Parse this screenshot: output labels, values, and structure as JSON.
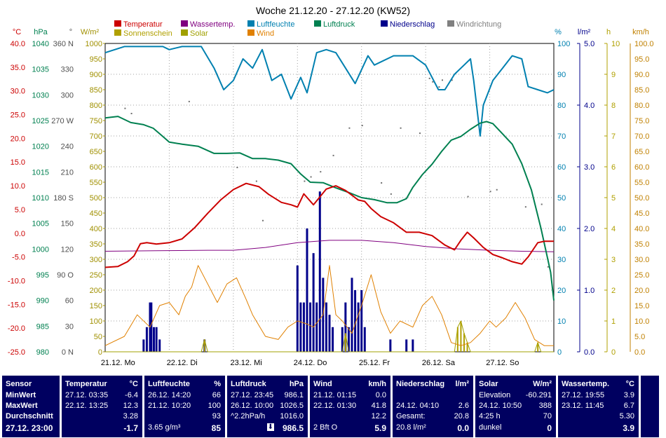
{
  "chart_data": {
    "type": "line",
    "title": "Woche 21.12.20 - 27.12.20 (KW52)",
    "legend": [
      {
        "label": "Temperatur",
        "color": "#cc0000"
      },
      {
        "label": "Wassertemp.",
        "color": "#800080"
      },
      {
        "label": "Luftfeuchte",
        "color": "#0080b0"
      },
      {
        "label": "Luftdruck",
        "color": "#008050"
      },
      {
        "label": "Niederschlag",
        "color": "#00008b"
      },
      {
        "label": "Windrichtung",
        "color": "#808080"
      },
      {
        "label": "Sonnenschein",
        "color": "#b0a000"
      },
      {
        "label": "Solar",
        "color": "#a0a000"
      },
      {
        "label": "Wind",
        "color": "#e08000"
      }
    ],
    "axes_left": [
      {
        "unit": "°C",
        "color": "#cc0000",
        "ticks": [
          "40.0",
          "35.0",
          "30.0",
          "25.0",
          "20.0",
          "15.0",
          "10.0",
          "5.0",
          "0.0",
          "-5.0",
          "-10.0",
          "-15.0",
          "-20.0",
          "-25.0"
        ]
      },
      {
        "unit": "hPa",
        "color": "#008050",
        "ticks": [
          "1040",
          "1035",
          "1030",
          "1025",
          "1020",
          "1015",
          "1010",
          "1005",
          "1000",
          "995",
          "990",
          "985",
          "980"
        ]
      },
      {
        "unit": "°",
        "color": "#505050",
        "ticks": [
          "360 N",
          "330",
          "300",
          "270 W",
          "240",
          "210",
          "180 S",
          "150",
          "120",
          "90 O",
          "60",
          "30",
          "0 N"
        ]
      },
      {
        "unit": "W/m²",
        "color": "#a09000",
        "ticks": [
          "1000",
          "950",
          "900",
          "850",
          "800",
          "750",
          "700",
          "650",
          "600",
          "550",
          "500",
          "450",
          "400",
          "350",
          "300",
          "250",
          "200",
          "150",
          "100",
          "50",
          "0"
        ]
      }
    ],
    "axes_right": [
      {
        "unit": "%",
        "color": "#0080b0",
        "ticks": [
          "100",
          "90",
          "80",
          "70",
          "60",
          "50",
          "40",
          "30",
          "20",
          "10",
          "0"
        ]
      },
      {
        "unit": "l/m²",
        "color": "#00008b",
        "ticks": [
          "5.0",
          "4.0",
          "3.0",
          "2.0",
          "1.0",
          "0.0"
        ]
      },
      {
        "unit": "h",
        "color": "#b0a000",
        "ticks": [
          "10",
          "9",
          "8",
          "7",
          "6",
          "5",
          "4",
          "3",
          "2",
          "1",
          "0"
        ]
      },
      {
        "unit": "km/h",
        "color": "#c08000",
        "ticks": [
          "100.0",
          "95.0",
          "90.0",
          "85.0",
          "80.0",
          "75.0",
          "70.0",
          "65.0",
          "60.0",
          "55.0",
          "50.0",
          "45.0",
          "40.0",
          "35.0",
          "30.0",
          "25.0",
          "20.0",
          "15.0",
          "10.0",
          "5.0",
          "0.0"
        ]
      }
    ],
    "x_labels": [
      "21.12. Mo",
      "22.12. Di",
      "23.12. Mi",
      "24.12. Do",
      "25.12. Fr",
      "26.12. Sa",
      "27.12. So"
    ],
    "x_range_days": [
      0,
      7
    ],
    "grid": true,
    "series": {
      "temperature_c": [
        [
          0,
          -7.2
        ],
        [
          0.2,
          -7.0
        ],
        [
          0.35,
          -6.0
        ],
        [
          0.45,
          -4.8
        ],
        [
          0.55,
          -2.2
        ],
        [
          0.65,
          -2.0
        ],
        [
          0.8,
          -2.3
        ],
        [
          1.0,
          -2.0
        ],
        [
          1.2,
          -1.2
        ],
        [
          1.4,
          1.2
        ],
        [
          1.6,
          4.2
        ],
        [
          1.8,
          7.0
        ],
        [
          2.0,
          9.2
        ],
        [
          2.2,
          10.5
        ],
        [
          2.4,
          9.8
        ],
        [
          2.55,
          8.2
        ],
        [
          2.75,
          6.5
        ],
        [
          2.9,
          6.0
        ],
        [
          3.0,
          5.5
        ],
        [
          3.1,
          8.3
        ],
        [
          3.25,
          6.0
        ],
        [
          3.45,
          9.3
        ],
        [
          3.6,
          10.0
        ],
        [
          3.75,
          9.0
        ],
        [
          3.85,
          8.0
        ],
        [
          3.95,
          7.0
        ],
        [
          4.05,
          6.7
        ],
        [
          4.15,
          5.2
        ],
        [
          4.3,
          3.5
        ],
        [
          4.5,
          2.2
        ],
        [
          4.7,
          0.2
        ],
        [
          4.9,
          0.2
        ],
        [
          5.1,
          -0.5
        ],
        [
          5.3,
          -2.5
        ],
        [
          5.45,
          -3.5
        ],
        [
          5.55,
          -1.5
        ],
        [
          5.65,
          0.2
        ],
        [
          5.75,
          -1.0
        ],
        [
          5.9,
          -3.0
        ],
        [
          6.05,
          -4.5
        ],
        [
          6.2,
          -5.2
        ],
        [
          6.35,
          -6.0
        ],
        [
          6.5,
          -6.5
        ],
        [
          6.6,
          -5.0
        ],
        [
          6.75,
          -2.0
        ],
        [
          6.85,
          -1.7
        ],
        [
          7.0,
          -1.7
        ]
      ],
      "humidity_pct": [
        [
          0,
          97
        ],
        [
          0.3,
          99
        ],
        [
          0.6,
          99
        ],
        [
          0.9,
          99
        ],
        [
          1.0,
          98
        ],
        [
          1.2,
          99
        ],
        [
          1.5,
          99
        ],
        [
          1.7,
          92
        ],
        [
          1.85,
          85
        ],
        [
          2.0,
          88
        ],
        [
          2.15,
          95
        ],
        [
          2.3,
          92
        ],
        [
          2.45,
          98
        ],
        [
          2.6,
          88
        ],
        [
          2.75,
          90
        ],
        [
          2.9,
          82
        ],
        [
          3.05,
          89
        ],
        [
          3.15,
          84
        ],
        [
          3.3,
          97
        ],
        [
          3.45,
          98
        ],
        [
          3.6,
          97
        ],
        [
          3.75,
          92
        ],
        [
          3.9,
          87
        ],
        [
          4.1,
          96
        ],
        [
          4.2,
          93
        ],
        [
          4.5,
          96
        ],
        [
          4.8,
          96
        ],
        [
          5.0,
          93
        ],
        [
          5.2,
          85
        ],
        [
          5.3,
          85
        ],
        [
          5.45,
          90
        ],
        [
          5.6,
          93
        ],
        [
          5.7,
          95
        ],
        [
          5.75,
          88
        ],
        [
          5.85,
          70
        ],
        [
          5.9,
          80
        ],
        [
          6.05,
          88
        ],
        [
          6.2,
          92
        ],
        [
          6.35,
          96
        ],
        [
          6.5,
          95
        ],
        [
          6.6,
          86
        ],
        [
          6.75,
          85
        ],
        [
          6.9,
          84
        ],
        [
          7.0,
          85
        ]
      ],
      "pressure_hpa": [
        [
          0,
          1025.5
        ],
        [
          0.2,
          1025.8
        ],
        [
          0.4,
          1024.6
        ],
        [
          0.6,
          1024.2
        ],
        [
          0.75,
          1023.5
        ],
        [
          0.9,
          1021.9
        ],
        [
          1.0,
          1020.8
        ],
        [
          1.2,
          1020.4
        ],
        [
          1.45,
          1020.0
        ],
        [
          1.7,
          1018.6
        ],
        [
          1.9,
          1018.6
        ],
        [
          2.1,
          1018.7
        ],
        [
          2.3,
          1017.6
        ],
        [
          2.5,
          1017.6
        ],
        [
          2.7,
          1017.3
        ],
        [
          2.9,
          1016.6
        ],
        [
          3.05,
          1014.6
        ],
        [
          3.2,
          1013.0
        ],
        [
          3.4,
          1012.9
        ],
        [
          3.6,
          1011.9
        ],
        [
          3.8,
          1011.0
        ],
        [
          4.0,
          1010.0
        ],
        [
          4.2,
          1009.6
        ],
        [
          4.4,
          1009.0
        ],
        [
          4.55,
          1009.0
        ],
        [
          4.7,
          1009.8
        ],
        [
          4.8,
          1012.0
        ],
        [
          4.95,
          1014.5
        ],
        [
          5.1,
          1016.5
        ],
        [
          5.25,
          1019.0
        ],
        [
          5.4,
          1021.2
        ],
        [
          5.55,
          1021.9
        ],
        [
          5.7,
          1023.3
        ],
        [
          5.85,
          1024.5
        ],
        [
          5.95,
          1024.8
        ],
        [
          6.05,
          1024.4
        ],
        [
          6.2,
          1022.4
        ],
        [
          6.35,
          1020.4
        ],
        [
          6.5,
          1016.6
        ],
        [
          6.65,
          1011.5
        ],
        [
          6.8,
          1004.0
        ],
        [
          6.95,
          995.5
        ],
        [
          7.0,
          990.0
        ]
      ],
      "water_temp_c": [
        [
          0,
          -3.8
        ],
        [
          0.8,
          -3.7
        ],
        [
          1.6,
          -3.6
        ],
        [
          2.0,
          -3.6
        ],
        [
          2.5,
          -3.0
        ],
        [
          3.0,
          -2.0
        ],
        [
          3.5,
          -1.5
        ],
        [
          4.0,
          -1.5
        ],
        [
          4.5,
          -2.0
        ],
        [
          5.0,
          -2.8
        ],
        [
          5.5,
          -3.3
        ],
        [
          6.0,
          -3.6
        ],
        [
          6.5,
          -3.8
        ],
        [
          7.0,
          -3.9
        ]
      ],
      "precip_lm2": [
        [
          0.6,
          0.2
        ],
        [
          0.65,
          0.4
        ],
        [
          0.7,
          0.8
        ],
        [
          0.72,
          0.8
        ],
        [
          0.76,
          0.4
        ],
        [
          0.8,
          0.4
        ],
        [
          0.85,
          0.2
        ],
        [
          1.55,
          0.2
        ],
        [
          3.0,
          1.4
        ],
        [
          3.05,
          0.8
        ],
        [
          3.1,
          0.8
        ],
        [
          3.15,
          2.0
        ],
        [
          3.2,
          0.8
        ],
        [
          3.25,
          1.6
        ],
        [
          3.3,
          0.8
        ],
        [
          3.35,
          2.6
        ],
        [
          3.4,
          1.2
        ],
        [
          3.45,
          0.8
        ],
        [
          3.5,
          0.6
        ],
        [
          3.55,
          0.4
        ],
        [
          3.7,
          0.4
        ],
        [
          3.75,
          0.8
        ],
        [
          3.8,
          0.4
        ],
        [
          3.85,
          1.2
        ],
        [
          3.9,
          1.0
        ],
        [
          3.95,
          0.8
        ],
        [
          4.0,
          1.0
        ],
        [
          4.05,
          0.4
        ],
        [
          4.45,
          0.2
        ],
        [
          4.7,
          0.2
        ],
        [
          4.8,
          0.2
        ]
      ],
      "wind_kmh": [
        [
          0,
          2
        ],
        [
          0.3,
          5
        ],
        [
          0.5,
          12
        ],
        [
          0.7,
          8
        ],
        [
          0.85,
          15
        ],
        [
          1.0,
          16
        ],
        [
          1.15,
          12
        ],
        [
          1.25,
          18
        ],
        [
          1.35,
          21
        ],
        [
          1.45,
          28
        ],
        [
          1.6,
          22
        ],
        [
          1.75,
          16
        ],
        [
          1.9,
          22
        ],
        [
          2.05,
          24
        ],
        [
          2.2,
          17
        ],
        [
          2.3,
          12
        ],
        [
          2.5,
          5
        ],
        [
          2.7,
          4
        ],
        [
          2.85,
          8
        ],
        [
          3.0,
          10
        ],
        [
          3.15,
          9
        ],
        [
          3.25,
          8
        ],
        [
          3.4,
          12
        ],
        [
          3.5,
          28
        ],
        [
          3.6,
          12
        ],
        [
          3.7,
          10
        ],
        [
          3.85,
          6
        ],
        [
          4.0,
          15
        ],
        [
          4.15,
          25
        ],
        [
          4.3,
          13
        ],
        [
          4.45,
          6
        ],
        [
          4.6,
          10
        ],
        [
          4.8,
          8
        ],
        [
          4.95,
          15
        ],
        [
          5.1,
          18
        ],
        [
          5.25,
          12
        ],
        [
          5.4,
          3
        ],
        [
          5.55,
          2
        ],
        [
          5.7,
          3
        ],
        [
          5.85,
          6
        ],
        [
          6.0,
          10
        ],
        [
          6.1,
          8
        ],
        [
          6.25,
          11
        ],
        [
          6.4,
          16
        ],
        [
          6.55,
          11
        ],
        [
          6.7,
          4
        ],
        [
          6.85,
          2
        ],
        [
          7.0,
          2
        ]
      ],
      "solar_wm2": [
        [
          0,
          0
        ],
        [
          1.5,
          0
        ],
        [
          1.55,
          40
        ],
        [
          1.6,
          0
        ],
        [
          2.7,
          0
        ],
        [
          3.7,
          0
        ],
        [
          3.75,
          60
        ],
        [
          3.8,
          0
        ],
        [
          5.45,
          0
        ],
        [
          5.5,
          80
        ],
        [
          5.55,
          100
        ],
        [
          5.6,
          60
        ],
        [
          5.65,
          30
        ],
        [
          5.7,
          0
        ],
        [
          6.7,
          0
        ],
        [
          6.75,
          30
        ],
        [
          6.8,
          0
        ],
        [
          7.0,
          0
        ]
      ],
      "wind_dir_deg": [
        [
          0.3,
          285
        ],
        [
          0.4,
          279
        ],
        [
          1.3,
          293
        ],
        [
          2.05,
          216
        ],
        [
          2.35,
          200
        ],
        [
          2.45,
          154
        ],
        [
          3.1,
          200
        ],
        [
          3.2,
          205
        ],
        [
          3.35,
          211
        ],
        [
          3.55,
          230
        ],
        [
          3.8,
          262
        ],
        [
          4.0,
          265
        ],
        [
          4.3,
          198
        ],
        [
          4.45,
          185
        ],
        [
          4.6,
          262
        ],
        [
          4.9,
          256
        ],
        [
          5.05,
          320
        ],
        [
          5.1,
          316
        ],
        [
          5.2,
          310
        ],
        [
          5.25,
          318
        ],
        [
          5.4,
          318
        ],
        [
          5.65,
          182
        ],
        [
          6.0,
          188
        ],
        [
          6.1,
          190
        ],
        [
          6.55,
          170
        ],
        [
          6.8,
          173
        ],
        [
          6.9,
          100
        ]
      ]
    }
  },
  "stats": {
    "sensor": {
      "header": "Sensor",
      "min": "MinWert",
      "max": "MaxWert",
      "avg": "Durchschnitt",
      "current": "27.12. 23:00"
    },
    "temperature": {
      "header": "Temperatur",
      "unit": "°C",
      "min_time": "27.12.  03:35",
      "min_val": "-6.4",
      "max_time": "22.12.  13:25",
      "max_val": "12.3",
      "avg_val": "3.28",
      "current": "-1.7"
    },
    "humidity": {
      "header": "Luftfeuchte",
      "unit": "%",
      "min_time": "26.12.  14:20",
      "min_val": "66",
      "max_time": "21.12.  10:20",
      "max_val": "100",
      "avg_val": "93",
      "extra": "3.65 g/m³",
      "current": "85"
    },
    "pressure": {
      "header": "Luftdruck",
      "unit": "hPa",
      "min_time": "27.12.  23:45",
      "min_val": "986.1",
      "max_time": "26.12.  10:00",
      "max_val": "1026.5",
      "avg_label": "^2.2hPa/h",
      "avg_val": "1016.0",
      "current": "986.5"
    },
    "wind": {
      "header": "Wind",
      "unit": "km/h",
      "min_time": "21.12.  01:15",
      "min_val": "0.0",
      "max_time": "22.12.  01:30",
      "max_val": "41.8",
      "avg_val": "12.2",
      "extra": "2 Bft O",
      "current": "5.9"
    },
    "precip": {
      "header": "Niederschlag",
      "unit": "l/m²",
      "max_time": "24.12.  04:10",
      "max_val": "2.6",
      "total_label": "Gesamt:",
      "total_val": "20.8",
      "extra": "20.8 l/m²",
      "current": "0.0"
    },
    "solar": {
      "header": "Solar",
      "unit": "W/m²",
      "elev_label": "Elevation",
      "elev_val": "-60.291",
      "max_time": "24.12.  10:50",
      "max_val": "388",
      "sun_label": "4:25 h",
      "sun_val": "70",
      "extra": "dunkel",
      "current": "0"
    },
    "water": {
      "header": "Wassertemp.",
      "unit": "°C",
      "min_time": "27.12.  19:55",
      "min_val": "3.9",
      "max_time": "23.12.  11:45",
      "max_val": "6.7",
      "avg_val": "5.30",
      "current": "3.9"
    }
  }
}
